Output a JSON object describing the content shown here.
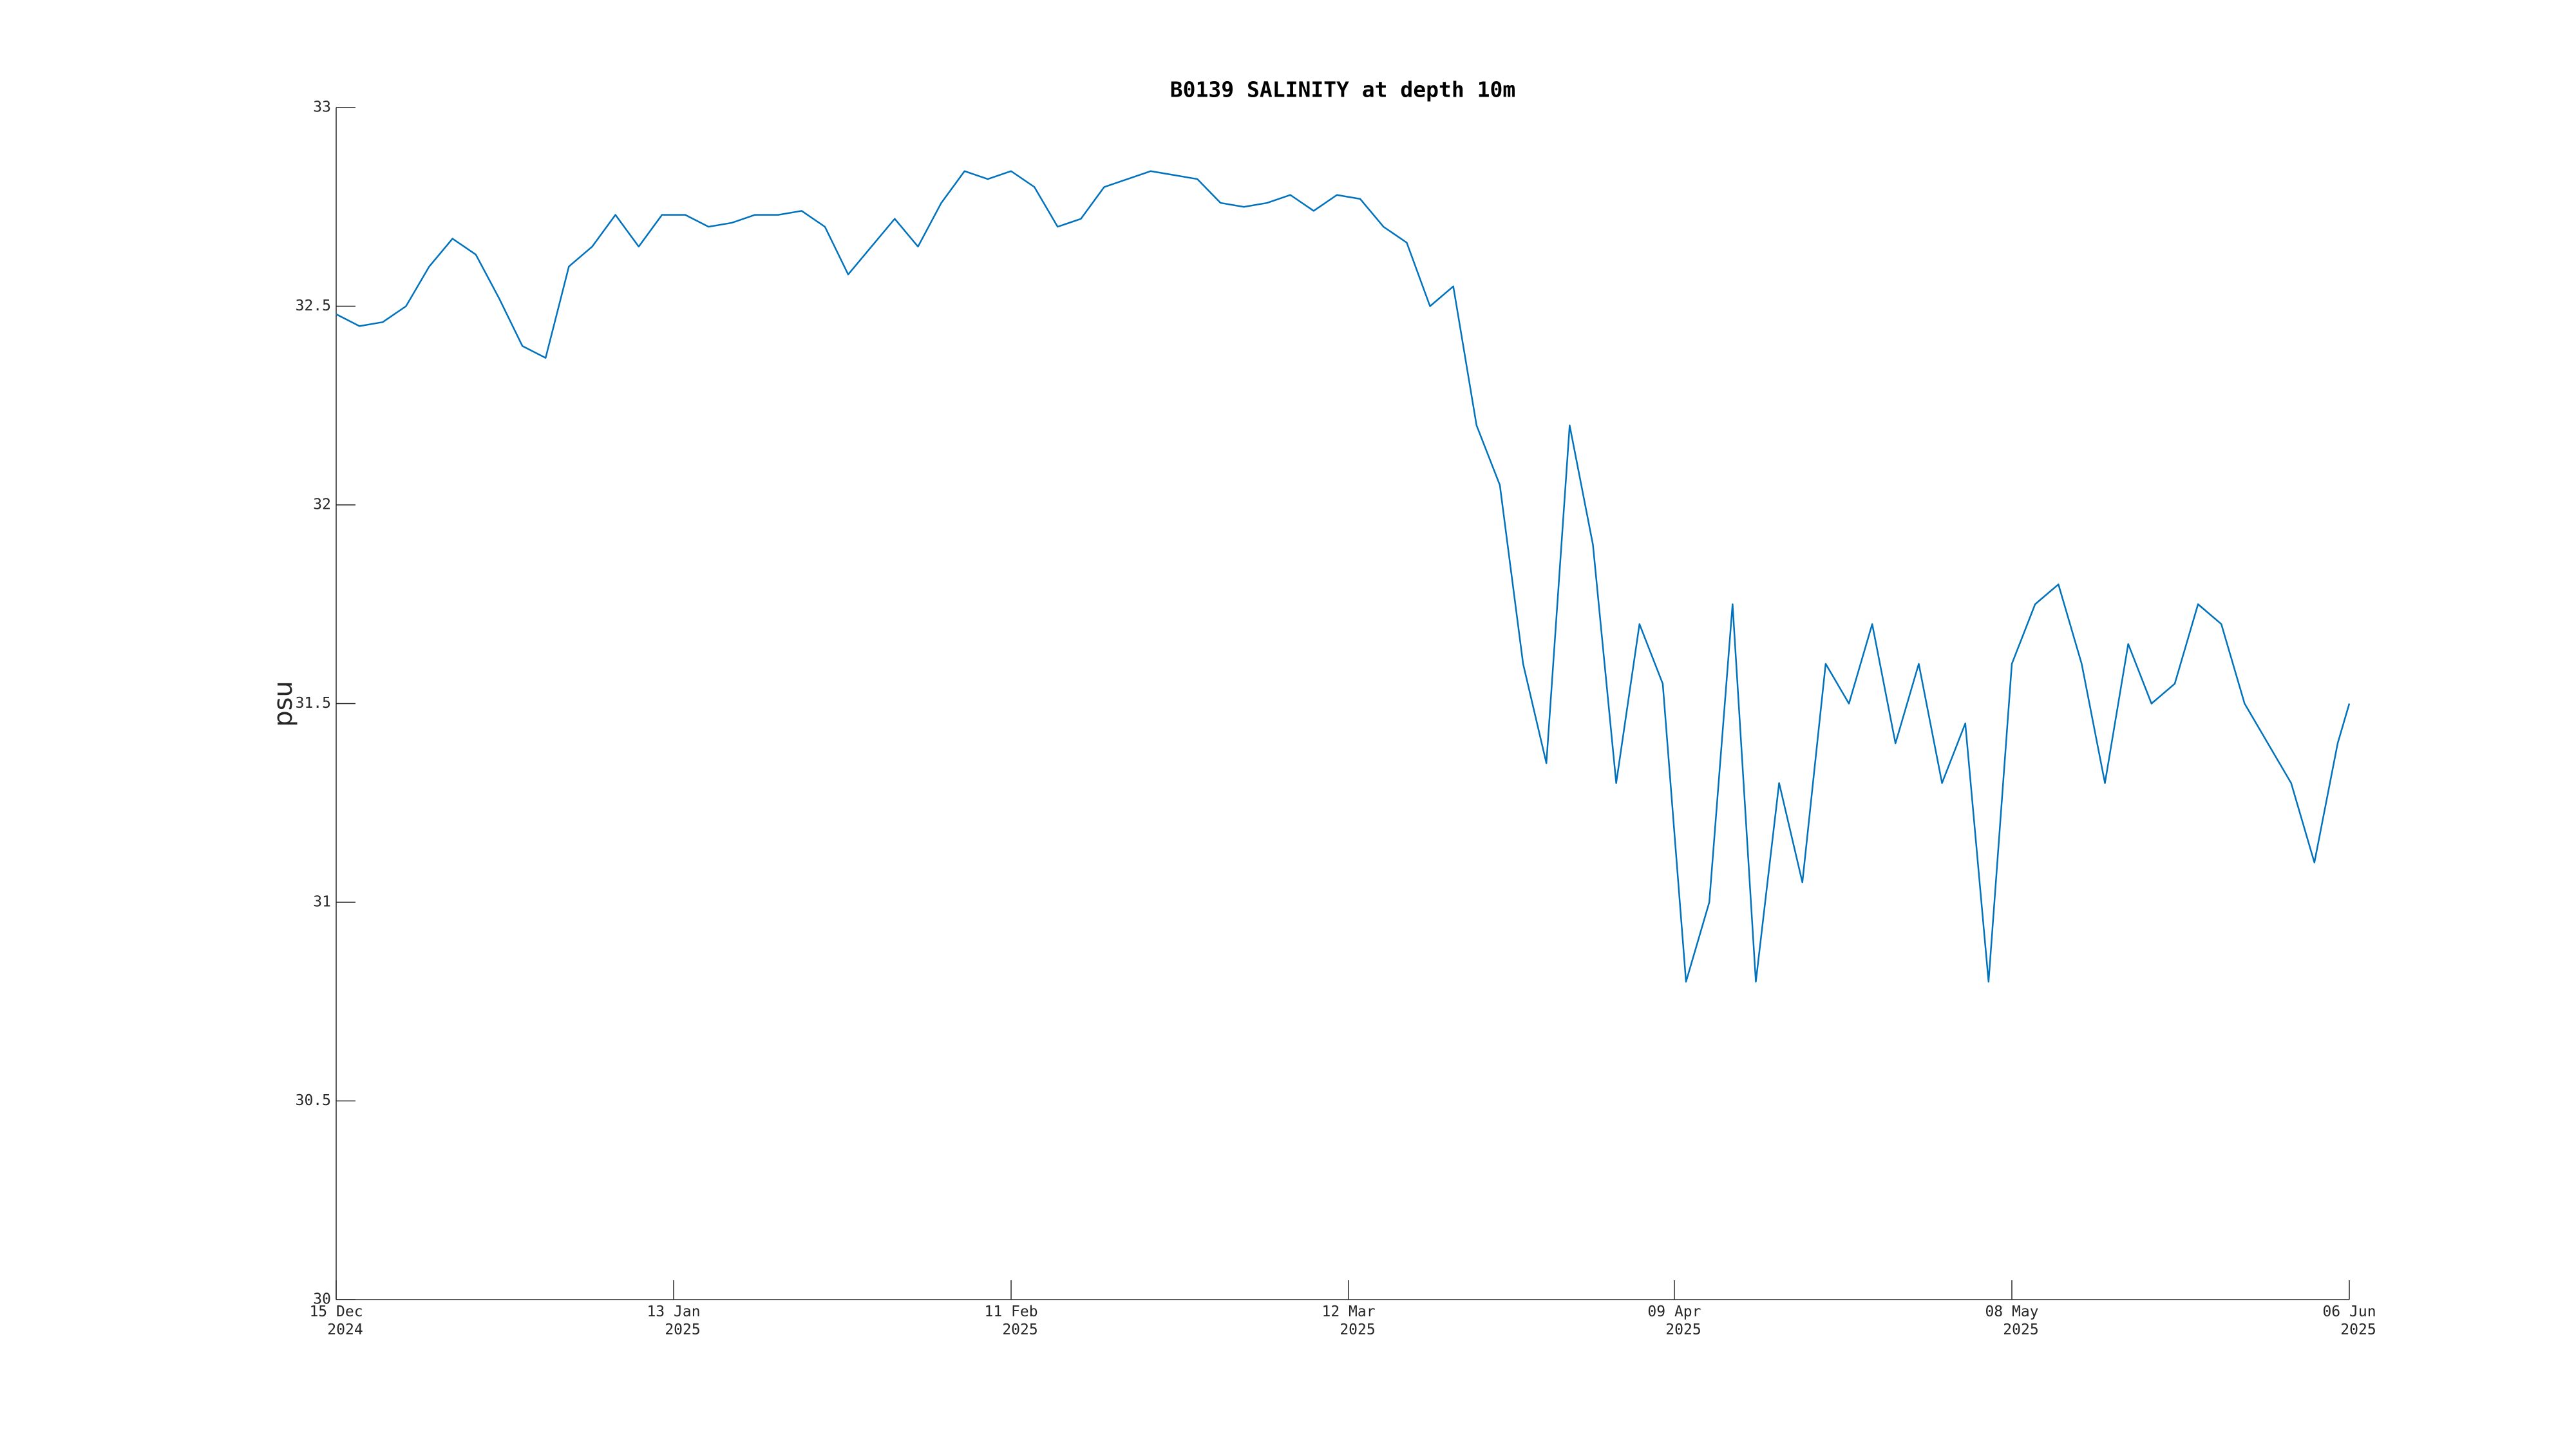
{
  "chart_data": {
    "type": "line",
    "title": "B0139 SALINITY at depth 10m",
    "y_label": "psu",
    "x": [
      "2024-12-15",
      "2024-12-17",
      "2024-12-19",
      "2024-12-21",
      "2024-12-23",
      "2024-12-25",
      "2024-12-27",
      "2024-12-29",
      "2024-12-31",
      "2025-01-02",
      "2025-01-04",
      "2025-01-06",
      "2025-01-08",
      "2025-01-10",
      "2025-01-12",
      "2025-01-14",
      "2025-01-16",
      "2025-01-18",
      "2025-01-20",
      "2025-01-22",
      "2025-01-24",
      "2025-01-26",
      "2025-01-28",
      "2025-01-30",
      "2025-02-01",
      "2025-02-03",
      "2025-02-05",
      "2025-02-07",
      "2025-02-09",
      "2025-02-11",
      "2025-02-13",
      "2025-02-15",
      "2025-02-17",
      "2025-02-19",
      "2025-02-21",
      "2025-02-23",
      "2025-02-25",
      "2025-02-27",
      "2025-03-01",
      "2025-03-03",
      "2025-03-05",
      "2025-03-07",
      "2025-03-09",
      "2025-03-11",
      "2025-03-13",
      "2025-03-15",
      "2025-03-17",
      "2025-03-19",
      "2025-03-21",
      "2025-03-23",
      "2025-03-25",
      "2025-03-27",
      "2025-03-29",
      "2025-03-31",
      "2025-04-02",
      "2025-04-04",
      "2025-04-06",
      "2025-04-08",
      "2025-04-10",
      "2025-04-12",
      "2025-04-14",
      "2025-04-16",
      "2025-04-18",
      "2025-04-20",
      "2025-04-22",
      "2025-04-24",
      "2025-04-26",
      "2025-04-28",
      "2025-04-30",
      "2025-05-02",
      "2025-05-04",
      "2025-05-06",
      "2025-05-08",
      "2025-05-10",
      "2025-05-12",
      "2025-05-14",
      "2025-05-16",
      "2025-05-18",
      "2025-05-20",
      "2025-05-22",
      "2025-05-24",
      "2025-05-26",
      "2025-05-28",
      "2025-05-30",
      "2025-06-01",
      "2025-06-03",
      "2025-06-05",
      "2025-06-06"
    ],
    "series": [
      {
        "name": "SALINITY",
        "color": "#0072bd",
        "values": [
          32.48,
          32.45,
          32.46,
          32.5,
          32.6,
          32.67,
          32.63,
          32.52,
          32.4,
          32.37,
          32.6,
          32.65,
          32.73,
          32.65,
          32.73,
          32.73,
          32.7,
          32.71,
          32.73,
          32.73,
          32.74,
          32.7,
          32.58,
          32.65,
          32.72,
          32.65,
          32.76,
          32.84,
          32.82,
          32.84,
          32.8,
          32.7,
          32.72,
          32.8,
          32.82,
          32.84,
          32.83,
          32.82,
          32.76,
          32.75,
          32.76,
          32.78,
          32.74,
          32.78,
          32.77,
          32.7,
          32.66,
          32.5,
          32.55,
          32.2,
          32.05,
          31.6,
          31.35,
          32.2,
          31.9,
          31.3,
          31.7,
          31.55,
          30.8,
          31.0,
          31.75,
          30.8,
          31.3,
          31.05,
          31.6,
          31.5,
          31.7,
          31.4,
          31.6,
          31.3,
          31.45,
          30.8,
          31.6,
          31.75,
          31.8,
          31.6,
          31.3,
          31.65,
          31.5,
          31.55,
          31.75,
          31.7,
          31.5,
          31.4,
          31.3,
          31.1,
          31.4,
          31.5
        ]
      }
    ],
    "xlim": [
      "2024-12-15",
      "2025-06-06"
    ],
    "xticks": [
      {
        "value": "2024-12-15",
        "label": "15 Dec\n2024"
      },
      {
        "value": "2025-01-13",
        "label": "13 Jan\n2025"
      },
      {
        "value": "2025-02-11",
        "label": "11 Feb\n2025"
      },
      {
        "value": "2025-03-12",
        "label": "12 Mar\n2025"
      },
      {
        "value": "2025-04-09",
        "label": "09 Apr\n2025"
      },
      {
        "value": "2025-05-08",
        "label": "08 May\n2025"
      },
      {
        "value": "2025-06-06",
        "label": "06 Jun\n2025"
      }
    ],
    "ylim": [
      30,
      33
    ],
    "yticks": [
      30,
      30.5,
      31,
      31.5,
      32,
      32.5,
      33
    ]
  }
}
